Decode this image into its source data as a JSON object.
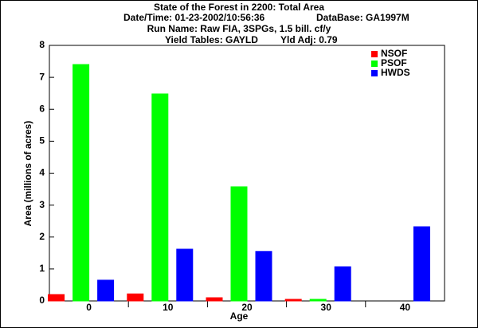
{
  "chart_data": {
    "type": "bar",
    "title": "State of the Forest in 2200: Total Area",
    "subtitles": [
      "Date/Time: 01-23-2002/10:56:36",
      "DataBase: GA1997M",
      "Run Name: Raw FIA, 3SPGs, 1.5 bill. cf/y",
      "Yield Tables: GAYLD",
      "Yld Adj: 0.79"
    ],
    "x_label": "Age",
    "y_label": "Area (millions of acres)",
    "categories": [
      "0",
      "10",
      "20",
      "30",
      "40"
    ],
    "series": [
      {
        "name": "NSOF",
        "color": "#ff0000",
        "values": [
          0.2,
          0.22,
          0.1,
          0.05,
          0
        ]
      },
      {
        "name": "PSOF",
        "color": "#00ff00",
        "values": [
          7.4,
          6.48,
          3.57,
          0.05,
          0
        ]
      },
      {
        "name": "HWDS",
        "color": "#0000ff",
        "values": [
          0.65,
          1.62,
          1.55,
          1.07,
          2.32
        ]
      }
    ],
    "ylim": [
      0,
      8
    ],
    "yticks": [
      0,
      1,
      2,
      3,
      4,
      5,
      6,
      7,
      8
    ],
    "legend": "top-right"
  }
}
